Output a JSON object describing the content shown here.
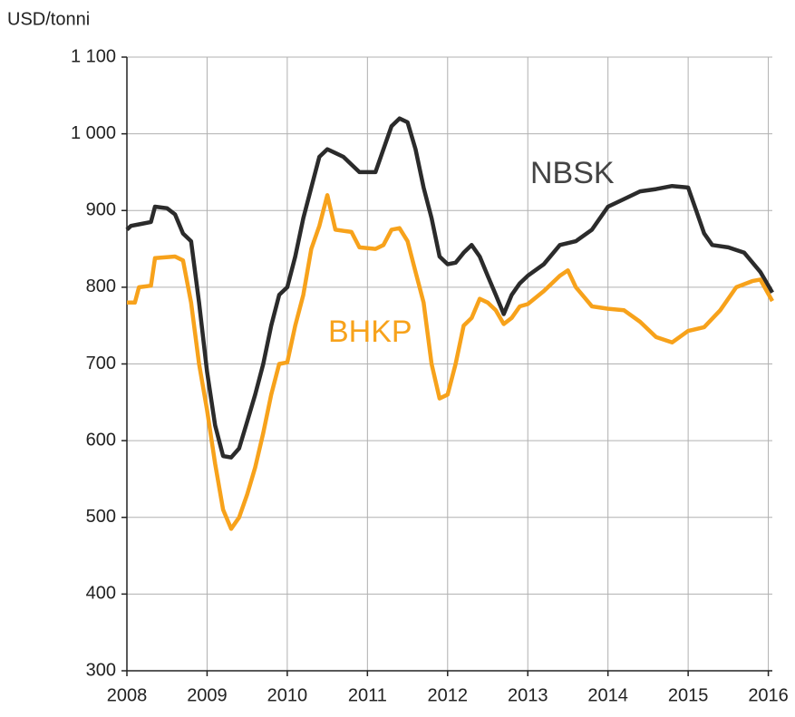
{
  "chart_data": {
    "type": "line",
    "ylabel": "USD/tonni",
    "xlim": [
      2008,
      2016.05
    ],
    "xticks": [
      2008,
      2009,
      2010,
      2011,
      2012,
      2013,
      2014,
      2015,
      2016
    ],
    "ylim": [
      300,
      1100
    ],
    "yticks": [
      300,
      400,
      500,
      600,
      700,
      800,
      900,
      {
        "value": 1000,
        "label": "1 000"
      },
      {
        "value": 1100,
        "label": "1 100"
      }
    ],
    "grid": true,
    "series": [
      {
        "name": "NBSK",
        "color": "#2b2b2b",
        "x": [
          2008.0,
          2008.05,
          2008.15,
          2008.3,
          2008.35,
          2008.5,
          2008.6,
          2008.7,
          2008.8,
          2008.9,
          2009.0,
          2009.1,
          2009.2,
          2009.3,
          2009.4,
          2009.5,
          2009.6,
          2009.7,
          2009.8,
          2009.9,
          2010.0,
          2010.1,
          2010.2,
          2010.3,
          2010.4,
          2010.5,
          2010.6,
          2010.7,
          2010.8,
          2010.9,
          2011.0,
          2011.1,
          2011.2,
          2011.3,
          2011.4,
          2011.5,
          2011.6,
          2011.7,
          2011.8,
          2011.9,
          2012.0,
          2012.1,
          2012.2,
          2012.3,
          2012.4,
          2012.5,
          2012.6,
          2012.7,
          2012.8,
          2012.9,
          2013.0,
          2013.2,
          2013.4,
          2013.6,
          2013.8,
          2014.0,
          2014.2,
          2014.4,
          2014.6,
          2014.8,
          2015.0,
          2015.1,
          2015.2,
          2015.3,
          2015.5,
          2015.7,
          2015.9,
          2016.05
        ],
        "values": [
          875,
          880,
          882,
          885,
          905,
          903,
          895,
          870,
          860,
          780,
          690,
          620,
          580,
          578,
          590,
          625,
          660,
          700,
          750,
          790,
          800,
          840,
          890,
          930,
          970,
          980,
          975,
          970,
          960,
          950,
          950,
          950,
          980,
          1010,
          1020,
          1015,
          980,
          930,
          890,
          840,
          830,
          832,
          845,
          855,
          840,
          815,
          790,
          765,
          790,
          805,
          815,
          830,
          855,
          860,
          875,
          905,
          915,
          925,
          928,
          932,
          930,
          900,
          870,
          855,
          852,
          845,
          820,
          793
        ]
      },
      {
        "name": "BHKP",
        "color": "#f7a21b",
        "x": [
          2008.0,
          2008.1,
          2008.15,
          2008.3,
          2008.35,
          2008.6,
          2008.7,
          2008.8,
          2008.9,
          2009.0,
          2009.1,
          2009.2,
          2009.3,
          2009.4,
          2009.5,
          2009.6,
          2009.7,
          2009.8,
          2009.9,
          2010.0,
          2010.1,
          2010.2,
          2010.3,
          2010.4,
          2010.5,
          2010.6,
          2010.8,
          2010.9,
          2011.1,
          2011.2,
          2011.3,
          2011.4,
          2011.5,
          2011.6,
          2011.7,
          2011.8,
          2011.9,
          2012.0,
          2012.1,
          2012.2,
          2012.3,
          2012.4,
          2012.5,
          2012.6,
          2012.7,
          2012.8,
          2012.9,
          2013.0,
          2013.2,
          2013.4,
          2013.5,
          2013.6,
          2013.8,
          2014.0,
          2014.2,
          2014.4,
          2014.6,
          2014.8,
          2015.0,
          2015.2,
          2015.4,
          2015.6,
          2015.8,
          2015.9,
          2016.05
        ],
        "values": [
          780,
          780,
          800,
          802,
          838,
          840,
          835,
          780,
          700,
          640,
          570,
          510,
          485,
          500,
          530,
          565,
          610,
          660,
          700,
          702,
          750,
          790,
          850,
          880,
          920,
          875,
          872,
          852,
          850,
          855,
          875,
          877,
          860,
          820,
          780,
          700,
          655,
          660,
          700,
          750,
          760,
          785,
          780,
          770,
          752,
          760,
          775,
          778,
          795,
          815,
          822,
          800,
          775,
          772,
          770,
          755,
          735,
          728,
          743,
          748,
          770,
          800,
          808,
          810,
          782
        ]
      }
    ]
  }
}
